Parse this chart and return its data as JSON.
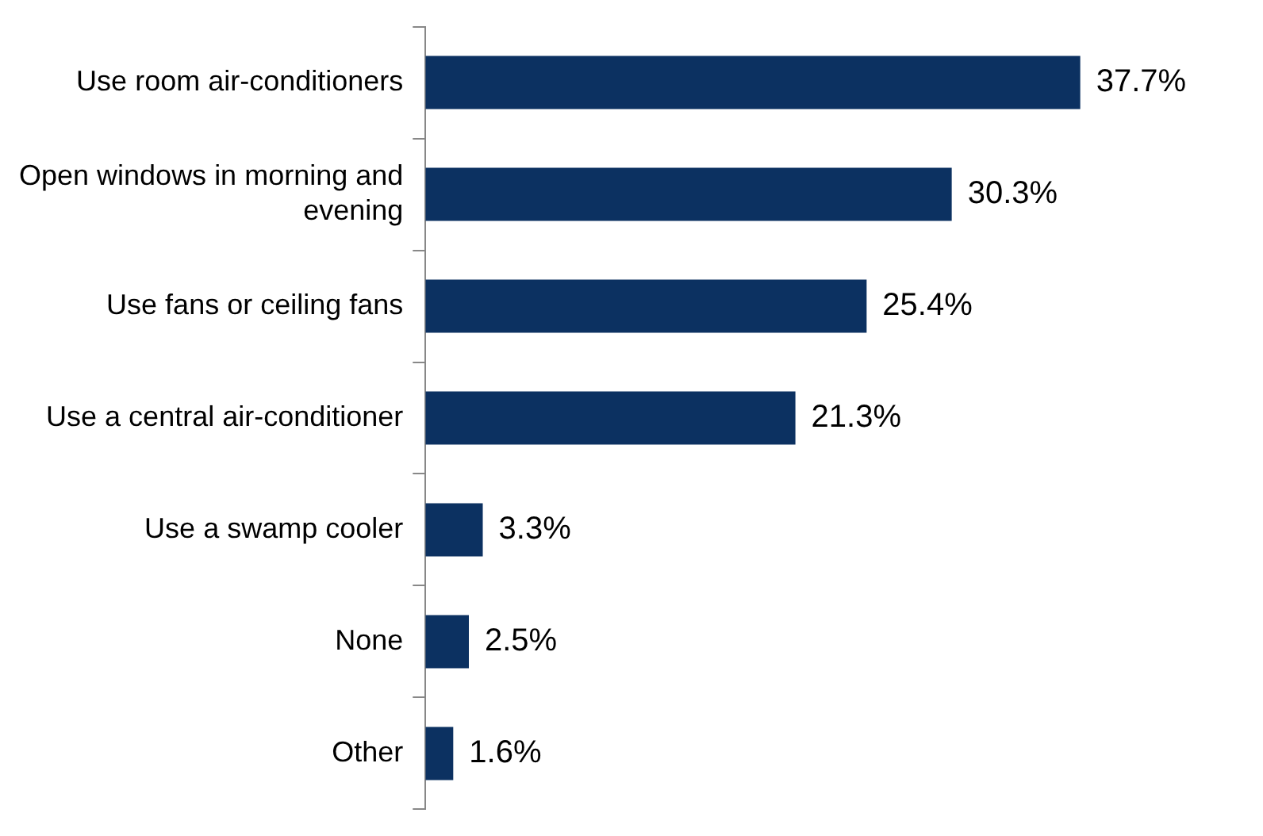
{
  "chart_data": {
    "type": "bar",
    "orientation": "horizontal",
    "categories": [
      "Use room air-conditioners",
      "Open windows in morning and evening",
      "Use fans or ceiling fans",
      "Use a central air-conditioner",
      "Use a swamp cooler",
      "None",
      "Other"
    ],
    "values": [
      37.7,
      30.3,
      25.4,
      21.3,
      3.3,
      2.5,
      1.6
    ],
    "value_labels": [
      "37.7%",
      "30.3%",
      "25.4%",
      "21.3%",
      "3.3%",
      "2.5%",
      "1.6%"
    ],
    "color": "#0c3161"
  }
}
